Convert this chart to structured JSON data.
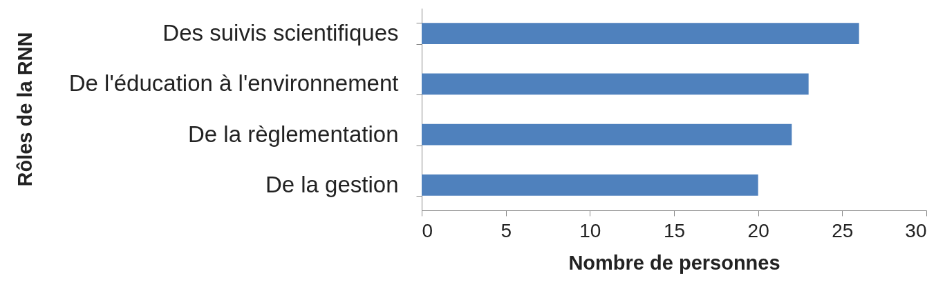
{
  "chart_data": {
    "type": "bar",
    "orientation": "horizontal",
    "xlabel": "Nombre de personnes",
    "ylabel": "Rôles de la RNN",
    "categories": [
      "Des suivis scientifiques",
      "De l'éducation à l'environnement",
      "De la règlementation",
      "De la gestion"
    ],
    "values": [
      26,
      23,
      22,
      20
    ],
    "color": "#4f81bd",
    "xlim": [
      0,
      30
    ],
    "xticks": [
      0,
      5,
      10,
      15,
      20,
      25,
      30
    ],
    "grid": false
  }
}
